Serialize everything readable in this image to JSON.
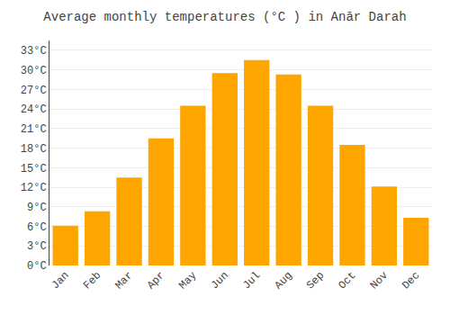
{
  "chart_data": {
    "type": "bar",
    "title": "Average monthly temperatures (°C ) in Anār Darah",
    "categories": [
      "Jan",
      "Feb",
      "Mar",
      "Apr",
      "May",
      "Jun",
      "Jul",
      "Aug",
      "Sep",
      "Oct",
      "Nov",
      "Dec"
    ],
    "values": [
      6.1,
      8.3,
      13.5,
      19.5,
      24.5,
      29.5,
      31.5,
      29.3,
      24.5,
      18.5,
      12.1,
      7.3
    ],
    "color": "#FFA500",
    "ylim": [
      0,
      34.5
    ],
    "yticks": [
      {
        "value": 0,
        "label": "0°C"
      },
      {
        "value": 3,
        "label": "3°C"
      },
      {
        "value": 6,
        "label": "6°C"
      },
      {
        "value": 9,
        "label": "9°C"
      },
      {
        "value": 12,
        "label": "12°C"
      },
      {
        "value": 15,
        "label": "15°C"
      },
      {
        "value": 18,
        "label": "18°C"
      },
      {
        "value": 21,
        "label": "21°C"
      },
      {
        "value": 24,
        "label": "24°C"
      },
      {
        "value": 27,
        "label": "27°C"
      },
      {
        "value": 30,
        "label": "30°C"
      },
      {
        "value": 33,
        "label": "33°C"
      }
    ],
    "grid": true
  }
}
